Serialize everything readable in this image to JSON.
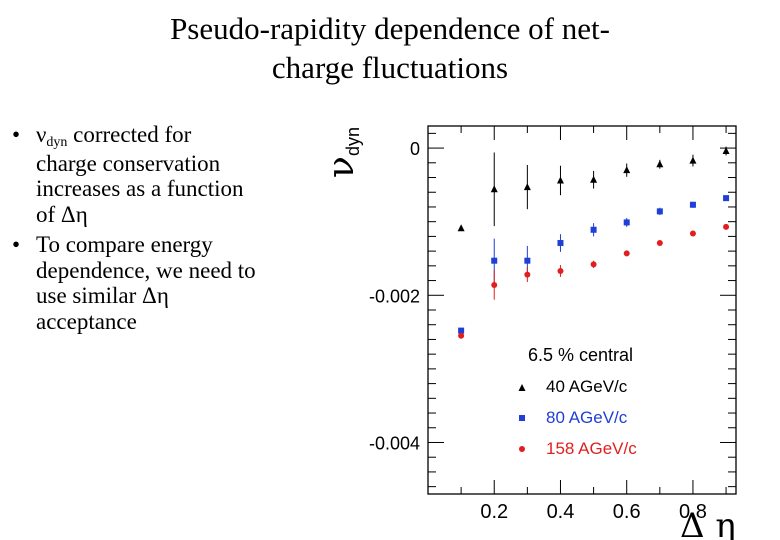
{
  "slide": {
    "title_line1": "Pseudo-rapidity dependence of net-",
    "title_line2": "charge fluctuations",
    "bullets": [
      {
        "symbol": "ν",
        "symbol_sub": "dyn",
        "line1_rest": " corrected for",
        "lines": [
          "charge conservation",
          "increases as a function"
        ],
        "last_prefix": "of ",
        "last_symbol": "Δη"
      },
      {
        "lines": [
          "To compare energy",
          "dependence, we need to"
        ],
        "last_prefix": "use similar ",
        "last_symbol": "Δη",
        "after": "acceptance"
      }
    ]
  },
  "chart_data": {
    "type": "scatter",
    "ylabel": "ν",
    "ylabel_sub": "dyn",
    "xlabel": "Δ η",
    "xlim": [
      0.0,
      0.93
    ],
    "ylim": [
      -0.0047,
      0.0003
    ],
    "x_ticks": [
      "0.2",
      "0.4",
      "0.6",
      "0.8"
    ],
    "y_ticks": [
      "0",
      "-0.002",
      "-0.004"
    ],
    "legend_title": "6.5 % central",
    "legend_position": "bottom-right",
    "series": [
      {
        "name": "40 AGeV/c",
        "marker": "triangle",
        "color": "#000000",
        "x": [
          0.1,
          0.2,
          0.3,
          0.4,
          0.5,
          0.6,
          0.7,
          0.8,
          0.9
        ],
        "y": [
          -0.00109,
          -0.00056,
          -0.00053,
          -0.00044,
          -0.00043,
          -0.0003,
          -0.00022,
          -0.00017,
          -4e-05
        ],
        "err": [
          2e-05,
          0.0005,
          0.0003,
          0.0002,
          0.00012,
          9e-05,
          6e-05,
          8e-05,
          6e-05
        ]
      },
      {
        "name": "80 AGeV/c",
        "marker": "square",
        "color": "#1f3fd6",
        "x": [
          0.1,
          0.2,
          0.3,
          0.4,
          0.5,
          0.6,
          0.7,
          0.8,
          0.9
        ],
        "y": [
          -0.00248,
          -0.00153,
          -0.00153,
          -0.00129,
          -0.00111,
          -0.00101,
          -0.00086,
          -0.00077,
          -0.00068
        ],
        "err": [
          2e-05,
          0.0003,
          0.0002,
          0.00012,
          9e-05,
          6e-05,
          5e-05,
          4e-05,
          3e-05
        ]
      },
      {
        "name": "158 AGeV/c",
        "marker": "circle",
        "color": "#e02020",
        "x": [
          0.1,
          0.2,
          0.3,
          0.4,
          0.5,
          0.6,
          0.7,
          0.8,
          0.9
        ],
        "y": [
          -0.00255,
          -0.00186,
          -0.00172,
          -0.00167,
          -0.00158,
          -0.00143,
          -0.00129,
          -0.00116,
          -0.00107
        ],
        "err": [
          2e-05,
          0.0002,
          0.0001,
          8e-05,
          5e-05,
          4e-05,
          3e-05,
          3e-05,
          2e-05
        ]
      }
    ]
  }
}
